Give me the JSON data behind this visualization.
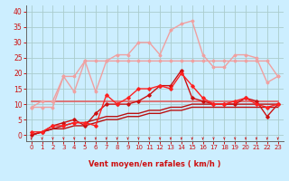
{
  "x": [
    0,
    1,
    2,
    3,
    4,
    5,
    6,
    7,
    8,
    9,
    10,
    11,
    12,
    13,
    14,
    15,
    16,
    17,
    18,
    19,
    20,
    21,
    22,
    23
  ],
  "series": [
    {
      "name": "line1_light_pink_flat",
      "color": "#f0a0a0",
      "lw": 1.0,
      "marker": "D",
      "markersize": 1.5,
      "y": [
        9,
        9,
        9,
        19,
        19,
        24,
        24,
        24,
        24,
        24,
        24,
        24,
        24,
        24,
        24,
        24,
        24,
        24,
        24,
        24,
        24,
        24,
        24,
        19
      ]
    },
    {
      "name": "line2_light_pink_high",
      "color": "#f0a0a0",
      "lw": 1.0,
      "marker": "D",
      "markersize": 1.5,
      "y": [
        9,
        11,
        11,
        19,
        14,
        24,
        14,
        24,
        26,
        26,
        30,
        30,
        26,
        34,
        36,
        37,
        26,
        22,
        22,
        26,
        26,
        25,
        17,
        19
      ]
    },
    {
      "name": "line3_medium_red_flat",
      "color": "#e06060",
      "lw": 1.2,
      "marker": null,
      "markersize": 0,
      "y": [
        11,
        11,
        11,
        11,
        11,
        11,
        11,
        11,
        11,
        11,
        11,
        11,
        11,
        11,
        11,
        11,
        11,
        11,
        11,
        11,
        11,
        11,
        11,
        11
      ]
    },
    {
      "name": "line4_medium_red_rising",
      "color": "#cc1010",
      "lw": 1.0,
      "marker": "D",
      "markersize": 1.8,
      "y": [
        0,
        1,
        3,
        4,
        5,
        3,
        7,
        10,
        10,
        10,
        11,
        13,
        16,
        16,
        21,
        12,
        11,
        10,
        10,
        10,
        12,
        11,
        6,
        10
      ]
    },
    {
      "name": "line5_red_gust",
      "color": "#ff2020",
      "lw": 1.0,
      "marker": "D",
      "markersize": 1.8,
      "y": [
        1,
        1,
        3,
        3,
        4,
        4,
        3,
        13,
        10,
        12,
        15,
        15,
        16,
        15,
        20,
        16,
        12,
        10,
        10,
        11,
        12,
        10,
        9,
        10
      ]
    },
    {
      "name": "line6_dark_red_low",
      "color": "#bb1010",
      "lw": 1.0,
      "marker": null,
      "markersize": 0,
      "y": [
        0,
        1,
        2,
        2,
        3,
        3,
        4,
        5,
        5,
        6,
        6,
        7,
        7,
        8,
        8,
        9,
        9,
        9,
        9,
        9,
        9,
        9,
        9,
        9
      ]
    },
    {
      "name": "line7_dark_red_rising2",
      "color": "#bb1010",
      "lw": 1.0,
      "marker": null,
      "markersize": 0,
      "y": [
        0,
        1,
        2,
        3,
        4,
        4,
        5,
        6,
        6,
        7,
        7,
        8,
        8,
        9,
        9,
        10,
        10,
        10,
        10,
        10,
        10,
        10,
        10,
        10
      ]
    }
  ],
  "xlim": [
    -0.5,
    23.5
  ],
  "ylim": [
    -2,
    42
  ],
  "yticks": [
    0,
    5,
    10,
    15,
    20,
    25,
    30,
    35,
    40
  ],
  "xticks": [
    0,
    1,
    2,
    3,
    4,
    5,
    6,
    7,
    8,
    9,
    10,
    11,
    12,
    13,
    14,
    15,
    16,
    17,
    18,
    19,
    20,
    21,
    22,
    23
  ],
  "xlabel": "Vent moyen/en rafales ( km/h )",
  "bgcolor": "#cceeff",
  "grid_color": "#aacccc",
  "tick_color": "#cc1010",
  "label_color": "#cc1010",
  "axis_color": "#666666",
  "arrow_color": "#cc1010"
}
